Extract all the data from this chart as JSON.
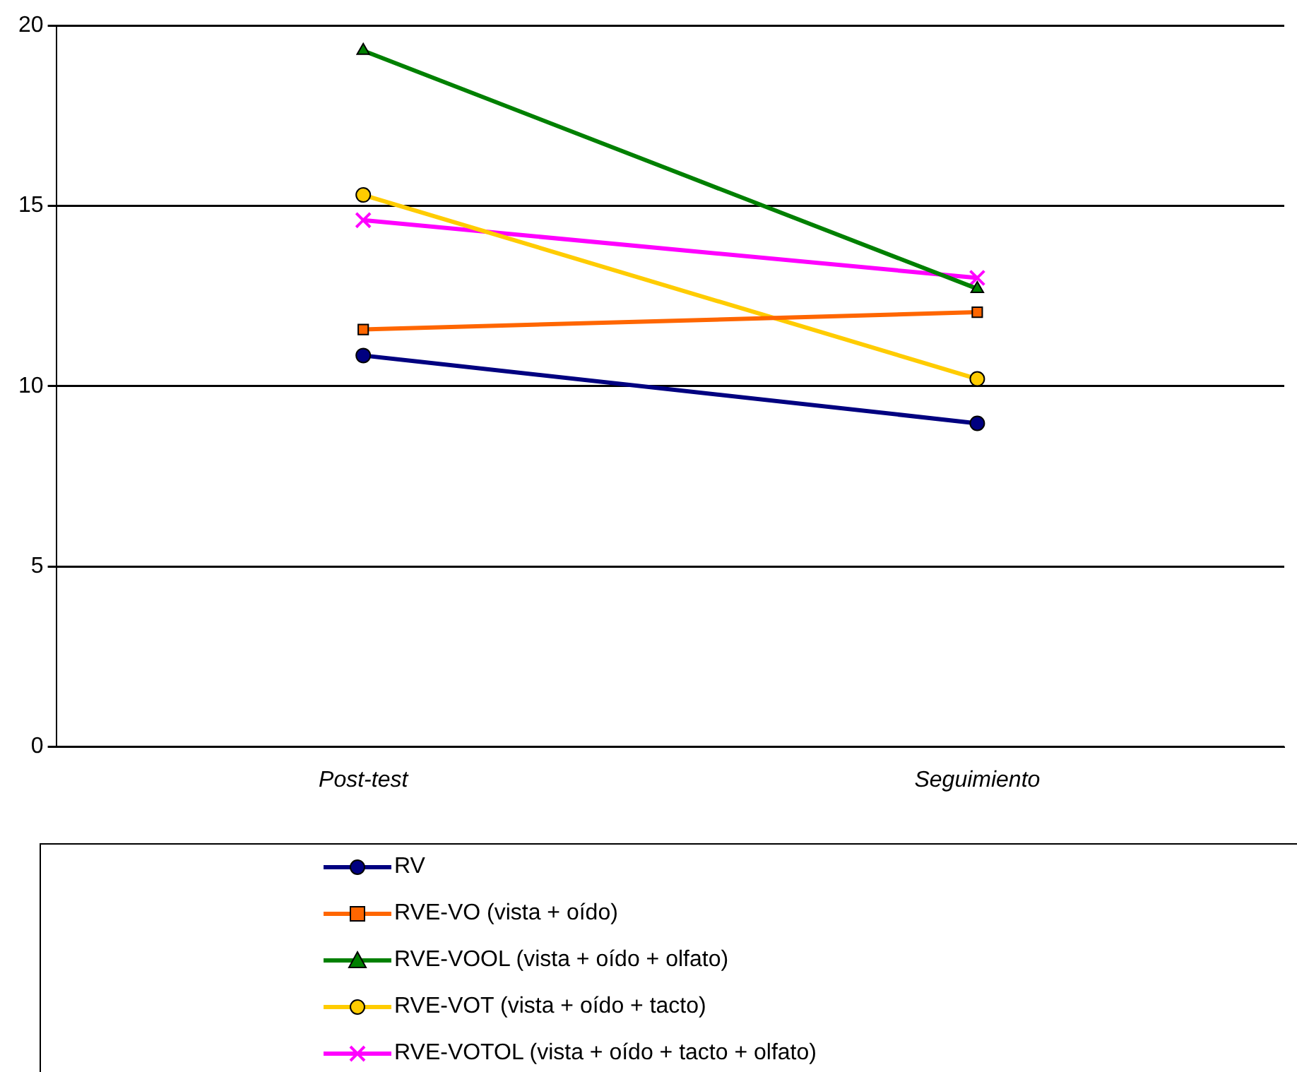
{
  "chart_data": {
    "type": "line",
    "categories": [
      "Post-test",
      "Seguimiento"
    ],
    "series": [
      {
        "name": "RV",
        "color": "#000080",
        "marker": "circle",
        "values": [
          10.85,
          8.97
        ]
      },
      {
        "name": "RVE-VO (vista + oído)",
        "color": "#ff6600",
        "marker": "square",
        "values": [
          11.57,
          12.05
        ]
      },
      {
        "name": "RVE-VOOL (vista + oído + olfato)",
        "color": "#008000",
        "marker": "triangle",
        "values": [
          19.3,
          12.7
        ]
      },
      {
        "name": "RVE-VOT (vista + oído + tacto)",
        "color": "#ffcc00",
        "marker": "circle",
        "values": [
          15.3,
          10.2
        ]
      },
      {
        "name": "RVE-VOTOL (vista + oído + tacto + olfato)",
        "color": "#ff00ff",
        "marker": "cross",
        "values": [
          14.6,
          13.0
        ]
      }
    ],
    "ylim": [
      0,
      20
    ],
    "yticks": [
      0,
      5,
      10,
      15,
      20
    ],
    "grid": "y",
    "legend": "bottom",
    "line_style": "solid"
  }
}
